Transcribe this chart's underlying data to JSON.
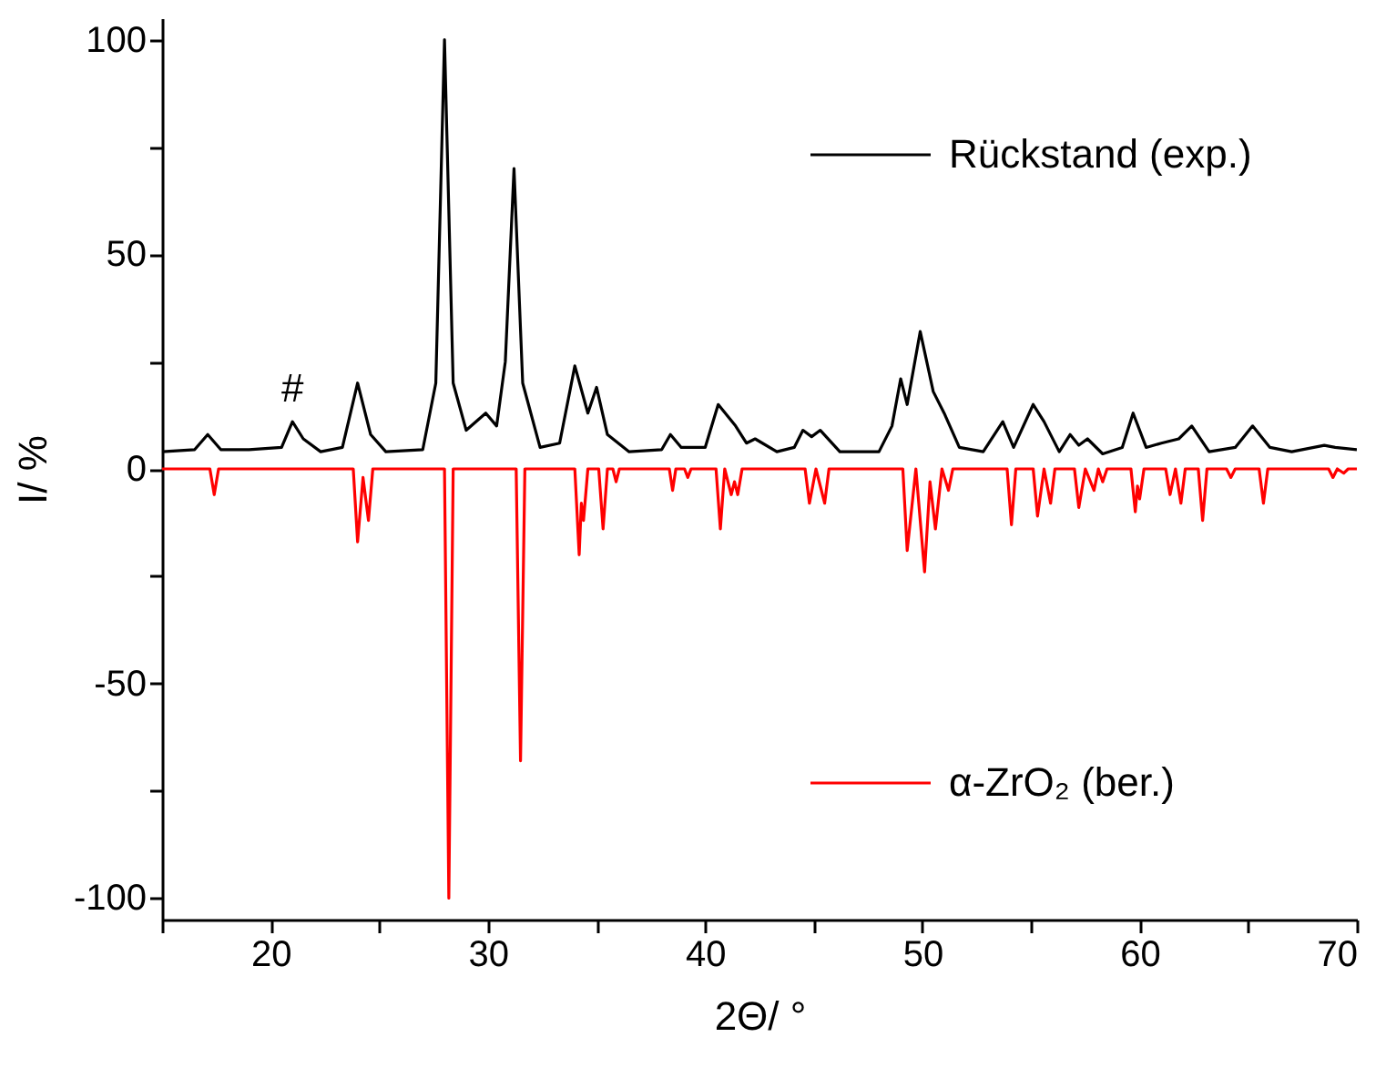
{
  "chart_data": {
    "type": "line",
    "xlabel": "2Θ/ °",
    "ylabel": "I/ %",
    "xlim": [
      15,
      70
    ],
    "ylim": [
      -105,
      105
    ],
    "xticks": [
      {
        "value": 15,
        "label": null
      },
      20,
      {
        "value": 25,
        "label": null
      },
      30,
      {
        "value": 35,
        "label": null
      },
      40,
      {
        "value": 45,
        "label": null
      },
      50,
      {
        "value": 55,
        "label": null
      },
      60,
      {
        "value": 65,
        "label": null
      },
      70
    ],
    "yticks": [
      -100,
      {
        "value": -75,
        "label": null
      },
      -50,
      {
        "value": -25,
        "label": null
      },
      0,
      {
        "value": 25,
        "label": null
      },
      50,
      {
        "value": 75,
        "label": null
      },
      100
    ],
    "legend": "right",
    "grid": false,
    "marker": "none",
    "line_style": "solid",
    "annotations": [
      {
        "text": "#",
        "x": 21,
        "y": 11
      }
    ],
    "series": [
      {
        "name": "Rückstand (exp.)",
        "color": "#000000",
        "x": [
          15,
          16.5,
          17.1,
          17.7,
          19,
          20.5,
          21.0,
          21.5,
          22.3,
          23.3,
          24.0,
          24.6,
          25.3,
          27.0,
          27.6,
          28.0,
          28.4,
          29.0,
          29.9,
          30.4,
          30.8,
          31.2,
          31.6,
          32.4,
          33.3,
          34.0,
          34.6,
          35.0,
          35.5,
          36.5,
          38.0,
          38.4,
          38.9,
          40.0,
          40.6,
          41.4,
          41.9,
          42.3,
          43.3,
          44.1,
          44.5,
          44.9,
          45.3,
          46.2,
          48.0,
          48.6,
          49.0,
          49.3,
          49.9,
          50.5,
          51.0,
          51.7,
          52.8,
          53.7,
          54.2,
          55.1,
          55.6,
          56.3,
          56.8,
          57.2,
          57.6,
          58.3,
          59.2,
          59.7,
          60.3,
          61.0,
          61.8,
          62.4,
          63.2,
          64.4,
          65.2,
          66.0,
          67.0,
          68.5,
          69.0,
          70
        ],
        "values": [
          4,
          4.5,
          8,
          4.5,
          4.5,
          5,
          11,
          7,
          4,
          5,
          20,
          8,
          4,
          4.5,
          20,
          100,
          20,
          9,
          13,
          10,
          25,
          70,
          20,
          5,
          6,
          24,
          13,
          19,
          8,
          4,
          4.5,
          8,
          5,
          5,
          15,
          10,
          6,
          7,
          4,
          5,
          9,
          7.5,
          9,
          4,
          4,
          10,
          21,
          15,
          32,
          18,
          13,
          5,
          4,
          11,
          5,
          15,
          11,
          4,
          8,
          5.5,
          7,
          3.5,
          5,
          13,
          5,
          6,
          7,
          10,
          4,
          5,
          10,
          5,
          4,
          5.5,
          5,
          4.5
        ]
      },
      {
        "name": "α-ZrO₂ (ber.)",
        "color": "#ff0000",
        "x": [
          15,
          17.2,
          17.4,
          17.6,
          23.8,
          24.0,
          24.25,
          24.5,
          24.7,
          28.0,
          28.2,
          28.4,
          31.3,
          31.5,
          31.7,
          34.0,
          34.2,
          34.3,
          34.4,
          34.6,
          35.1,
          35.3,
          35.5,
          35.75,
          35.9,
          36.05,
          38.35,
          38.5,
          38.65,
          39.05,
          39.2,
          39.35,
          40.5,
          40.7,
          40.9,
          41.2,
          41.35,
          41.5,
          41.7,
          44.6,
          44.8,
          45.1,
          45.5,
          45.7,
          49.1,
          49.3,
          49.7,
          50.1,
          50.35,
          50.6,
          50.9,
          51.2,
          51.4,
          53.9,
          54.1,
          54.3,
          55.1,
          55.3,
          55.6,
          55.9,
          56.1,
          57.0,
          57.2,
          57.5,
          57.9,
          58.1,
          58.3,
          58.5,
          59.6,
          59.8,
          59.9,
          60.0,
          60.2,
          61.2,
          61.4,
          61.65,
          61.9,
          62.1,
          62.7,
          62.9,
          63.1,
          64.0,
          64.2,
          64.4,
          65.5,
          65.7,
          65.9,
          68.7,
          68.9,
          69.1,
          69.4,
          69.6,
          70
        ],
        "values": [
          0,
          0,
          -6,
          0,
          0,
          -17,
          -2,
          -12,
          0,
          0,
          -100,
          0,
          0,
          -68,
          0,
          0,
          -20,
          -8,
          -12,
          0,
          0,
          -14,
          0,
          0,
          -3,
          0,
          0,
          -5,
          0,
          0,
          -2,
          0,
          0,
          -14,
          0,
          -6,
          -3,
          -6,
          0,
          0,
          -8,
          0,
          -8,
          0,
          0,
          -19,
          0,
          -24,
          -3,
          -14,
          0,
          -5,
          0,
          0,
          -13,
          0,
          0,
          -11,
          0,
          -8,
          0,
          0,
          -9,
          0,
          -5,
          0,
          -3,
          0,
          0,
          -10,
          -4,
          -7,
          0,
          0,
          -6,
          0,
          -8,
          0,
          0,
          -12,
          0,
          0,
          -2,
          0,
          0,
          -8,
          0,
          0,
          -2,
          0,
          -1,
          0,
          0
        ]
      }
    ]
  }
}
